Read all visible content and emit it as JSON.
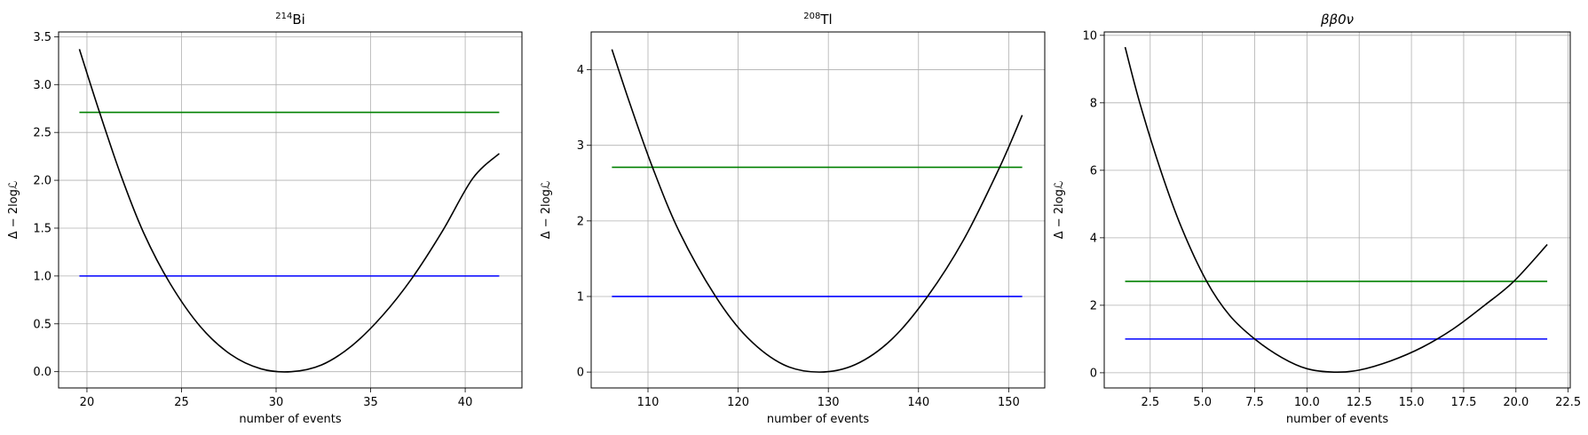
{
  "chart_data": [
    {
      "type": "line",
      "title": "²¹⁴Bi",
      "title_base": "Bi",
      "title_sup": "214",
      "xlabel": "number of events",
      "ylabel": "Δ − 2logℒ",
      "xlim": [
        18.5,
        43.0
      ],
      "ylim": [
        -0.17,
        3.55
      ],
      "xticks": [
        20,
        25,
        30,
        35,
        40
      ],
      "xtick_labels": [
        "20",
        "25",
        "30",
        "35",
        "40"
      ],
      "yticks": [
        0.0,
        0.5,
        1.0,
        1.5,
        2.0,
        2.5,
        3.0,
        3.5
      ],
      "ytick_labels": [
        "0.0",
        "0.5",
        "1.0",
        "1.5",
        "2.0",
        "2.5",
        "3.0",
        "3.5"
      ],
      "grid": true,
      "series": [
        {
          "color": "#000000",
          "x": [
            19.6,
            20.6,
            21.8,
            23.0,
            24.4,
            26.0,
            27.6,
            29.2,
            30.8,
            32.4,
            34.0,
            35.6,
            37.2,
            38.8,
            40.4,
            41.8
          ],
          "y": [
            3.37,
            2.75,
            2.05,
            1.45,
            0.92,
            0.47,
            0.18,
            0.03,
            0.0,
            0.07,
            0.27,
            0.58,
            0.98,
            1.47,
            2.02,
            2.28
          ]
        },
        {
          "color": "#008000",
          "x": [
            19.6,
            41.8
          ],
          "y": [
            2.71,
            2.71
          ]
        },
        {
          "color": "#0000ff",
          "x": [
            19.6,
            41.8
          ],
          "y": [
            1.0,
            1.0
          ]
        }
      ]
    },
    {
      "type": "line",
      "title": "²⁰⁸Tl",
      "title_base": "Tl",
      "title_sup": "208",
      "xlabel": "number of events",
      "ylabel": "Δ − 2logℒ",
      "xlim": [
        103.7,
        154.0
      ],
      "ylim": [
        -0.21,
        4.5
      ],
      "xticks": [
        110,
        120,
        130,
        140,
        150
      ],
      "xtick_labels": [
        "110",
        "120",
        "130",
        "140",
        "150"
      ],
      "yticks": [
        0,
        1,
        2,
        3,
        4
      ],
      "ytick_labels": [
        "0",
        "1",
        "2",
        "3",
        "4"
      ],
      "grid": true,
      "series": [
        {
          "color": "#000000",
          "x": [
            106.0,
            108.0,
            110.5,
            113.5,
            117.5,
            121.0,
            125.0,
            129.0,
            133.0,
            137.0,
            141.0,
            145.0,
            149.0,
            151.5
          ],
          "y": [
            4.27,
            3.55,
            2.71,
            1.85,
            1.0,
            0.46,
            0.1,
            0.0,
            0.1,
            0.43,
            1.0,
            1.75,
            2.71,
            3.4
          ]
        },
        {
          "color": "#008000",
          "x": [
            106.0,
            151.5
          ],
          "y": [
            2.71,
            2.71
          ]
        },
        {
          "color": "#0000ff",
          "x": [
            106.0,
            151.5
          ],
          "y": [
            1.0,
            1.0
          ]
        }
      ]
    },
    {
      "type": "line",
      "title": "ββ0ν",
      "title_base": "ββ0ν",
      "title_sup": "",
      "xlabel": "number of events",
      "ylabel": "Δ − 2logℒ",
      "xlim": [
        0.3,
        22.6
      ],
      "ylim": [
        -0.45,
        10.1
      ],
      "xticks": [
        2.5,
        5.0,
        7.5,
        10.0,
        12.5,
        15.0,
        17.5,
        20.0,
        22.5
      ],
      "xtick_labels": [
        "2.5",
        "5.0",
        "7.5",
        "10.0",
        "12.5",
        "15.0",
        "17.5",
        "20.0",
        "22.5"
      ],
      "yticks": [
        0,
        2,
        4,
        6,
        8,
        10
      ],
      "ytick_labels": [
        "0",
        "2",
        "4",
        "6",
        "8",
        "10"
      ],
      "grid": true,
      "series": [
        {
          "color": "#000000",
          "x": [
            1.3,
            2.0,
            3.0,
            4.0,
            5.2,
            6.3,
            7.5,
            8.8,
            10.0,
            11.3,
            12.5,
            14.0,
            15.5,
            17.0,
            18.5,
            19.9,
            21.5
          ],
          "y": [
            9.65,
            8.0,
            6.0,
            4.3,
            2.71,
            1.7,
            1.0,
            0.45,
            0.12,
            0.02,
            0.08,
            0.35,
            0.75,
            1.3,
            2.0,
            2.71,
            3.8
          ]
        },
        {
          "color": "#008000",
          "x": [
            1.3,
            21.5
          ],
          "y": [
            2.71,
            2.71
          ]
        },
        {
          "color": "#0000ff",
          "x": [
            1.3,
            21.5
          ],
          "y": [
            1.0,
            1.0
          ]
        }
      ]
    }
  ]
}
